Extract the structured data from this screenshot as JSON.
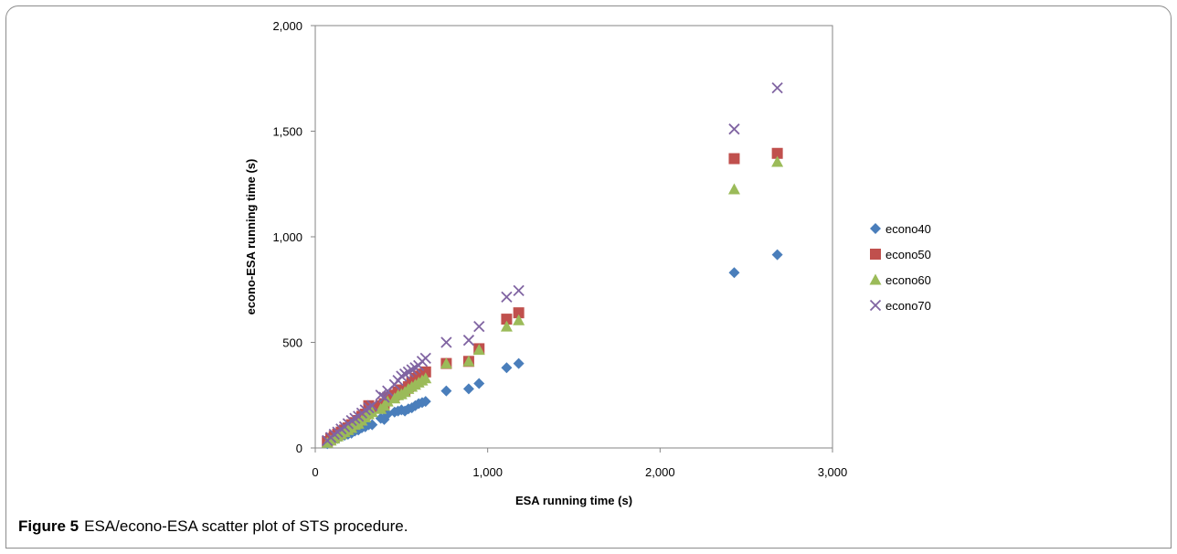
{
  "caption": {
    "label": "Figure 5",
    "text": "ESA/econo-ESA scatter plot of STS procedure."
  },
  "chart_data": {
    "type": "scatter",
    "title": "",
    "xlabel": "ESA running time (s)",
    "ylabel": "econo-ESA running time (s)",
    "xlim": [
      0,
      3000
    ],
    "ylim": [
      0,
      2000
    ],
    "x_ticks": [
      0,
      1000,
      2000,
      3000
    ],
    "x_tick_labels": [
      "0",
      "1,000",
      "2,000",
      "3,000"
    ],
    "y_ticks": [
      0,
      500,
      1000,
      1500,
      2000
    ],
    "y_tick_labels": [
      "0",
      "500",
      "1,000",
      "1,500",
      "2,000"
    ],
    "grid": false,
    "legend_position": "right",
    "x": [
      70,
      90,
      110,
      130,
      150,
      170,
      190,
      210,
      230,
      250,
      270,
      290,
      310,
      330,
      380,
      400,
      420,
      460,
      480,
      500,
      520,
      540,
      560,
      580,
      600,
      620,
      640,
      760,
      890,
      950,
      1110,
      1180,
      2430,
      2680
    ],
    "series": [
      {
        "name": "econo40",
        "marker": "diamond",
        "color": "#4a7ebb",
        "values": [
          20,
          30,
          40,
          45,
          55,
          60,
          65,
          70,
          80,
          85,
          95,
          100,
          110,
          110,
          140,
          135,
          160,
          170,
          175,
          180,
          175,
          185,
          190,
          200,
          210,
          215,
          220,
          270,
          280,
          305,
          380,
          400,
          830,
          915
        ]
      },
      {
        "name": "econo50",
        "marker": "square",
        "color": "#c0504d",
        "values": [
          30,
          45,
          55,
          65,
          75,
          85,
          95,
          110,
          120,
          130,
          150,
          160,
          200,
          190,
          200,
          210,
          240,
          250,
          265,
          275,
          270,
          290,
          310,
          330,
          340,
          350,
          360,
          400,
          410,
          470,
          610,
          640,
          1370,
          1395
        ]
      },
      {
        "name": "econo60",
        "marker": "triangle",
        "color": "#9bbb59",
        "values": [
          25,
          35,
          45,
          55,
          65,
          75,
          85,
          95,
          110,
          115,
          130,
          145,
          160,
          170,
          185,
          200,
          220,
          235,
          250,
          255,
          265,
          280,
          290,
          300,
          310,
          320,
          330,
          400,
          410,
          465,
          575,
          605,
          1225,
          1355
        ]
      },
      {
        "name": "econo70",
        "marker": "x",
        "color": "#8064a2",
        "values": [
          35,
          50,
          65,
          75,
          90,
          100,
          115,
          130,
          140,
          150,
          165,
          180,
          190,
          200,
          250,
          240,
          270,
          300,
          320,
          340,
          350,
          360,
          370,
          380,
          390,
          410,
          425,
          500,
          510,
          575,
          715,
          745,
          1510,
          1705
        ]
      }
    ]
  }
}
